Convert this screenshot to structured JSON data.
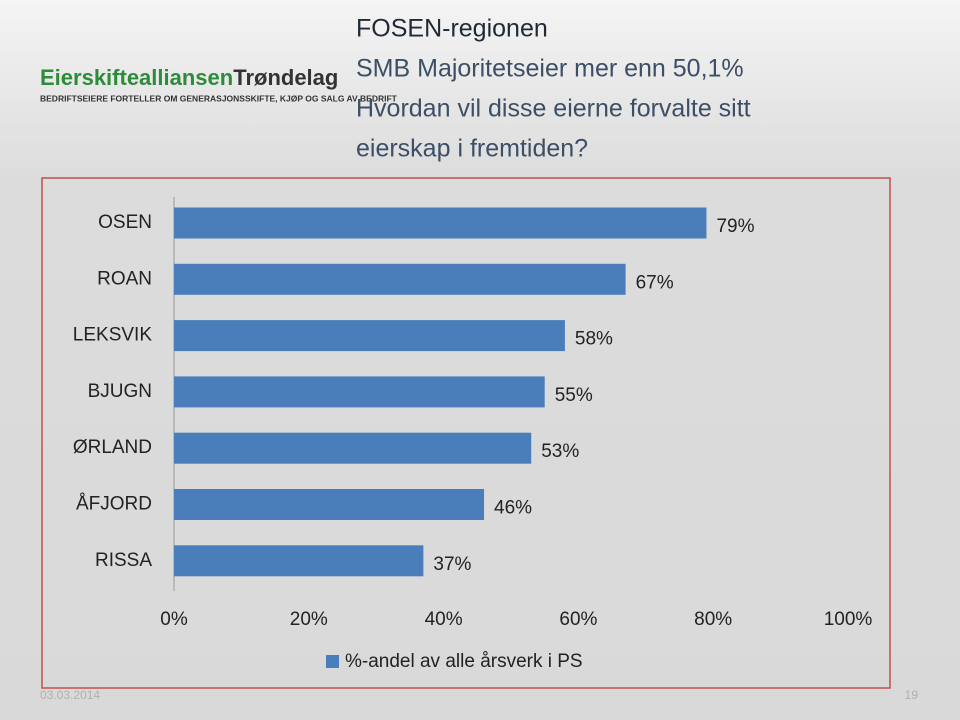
{
  "logo": {
    "name": "Eierskiftealliansen",
    "region": "Trøndelag",
    "tagline": "BEDRIFTSEIERE FORTELLER OM GENERASJONSSKIFTE, KJØP OG SALG AV BEDRIFT"
  },
  "title_lines": [
    "FOSEN-regionen",
    "SMB Majoritetseier mer enn 50,1%",
    "Hvordan vil disse eierne forvalte sitt",
    "eierskap i fremtiden?"
  ],
  "chart_data": {
    "type": "bar",
    "orientation": "horizontal",
    "categories": [
      "OSEN",
      "ROAN",
      "LEKSVIK",
      "BJUGN",
      "ØRLAND",
      "ÅFJORD",
      "RISSA"
    ],
    "series": [
      {
        "name": "%-andel av alle årsverk i PS",
        "color": "#4a7ebb",
        "values": [
          79,
          67,
          58,
          55,
          53,
          46,
          37
        ],
        "value_labels": [
          "79%",
          "67%",
          "58%",
          "55%",
          "53%",
          "46%",
          "37%"
        ]
      }
    ],
    "xlim": [
      0,
      100
    ],
    "xticks": [
      {
        "value": 0,
        "label": "0%"
      },
      {
        "value": 20,
        "label": "20%"
      },
      {
        "value": 40,
        "label": "40%"
      },
      {
        "value": 60,
        "label": "60%"
      },
      {
        "value": 80,
        "label": "80%"
      },
      {
        "value": 100,
        "label": "100%"
      }
    ],
    "grid": false,
    "legend": "bottom"
  },
  "footer": {
    "date": "03.03.2014",
    "page": "19"
  }
}
